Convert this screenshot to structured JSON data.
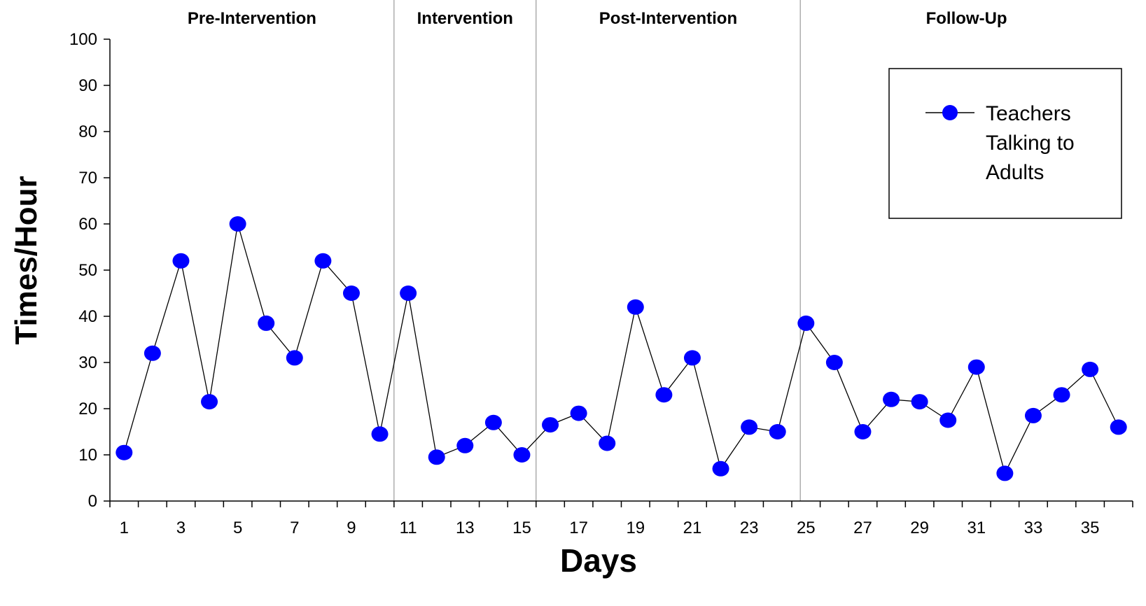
{
  "chart_data": {
    "type": "line",
    "xlabel": "Days",
    "ylabel": "Times/Hour",
    "xlim": [
      0.5,
      36.5
    ],
    "ylim": [
      0,
      100
    ],
    "y_ticks": [
      0,
      10,
      20,
      30,
      40,
      50,
      60,
      70,
      80,
      90,
      100
    ],
    "x_tick_labels": [
      1,
      3,
      5,
      7,
      9,
      11,
      13,
      15,
      17,
      19,
      21,
      23,
      25,
      27,
      29,
      31,
      33,
      35
    ],
    "grid": false,
    "legend_position": "top-right",
    "phases": [
      {
        "label": "Pre-Intervention",
        "start": 0.5,
        "end": 10.5
      },
      {
        "label": "Intervention",
        "start": 10.5,
        "end": 15.5
      },
      {
        "label": "Post-Intervention",
        "start": 15.5,
        "end": 24.8
      },
      {
        "label": "Follow-Up",
        "start": 24.8,
        "end": 36.5
      }
    ],
    "series": [
      {
        "name": "Teachers Talking to Adults",
        "name_lines": [
          "Teachers",
          "Talking to",
          "Adults"
        ],
        "color": "#0000ff",
        "line_color": "#000000",
        "x": [
          1,
          2,
          3,
          4,
          5,
          6,
          7,
          8,
          9,
          10,
          11,
          12,
          13,
          14,
          15,
          16,
          17,
          18,
          19,
          20,
          21,
          22,
          23,
          24,
          25,
          26,
          27,
          28,
          29,
          30,
          31,
          32,
          33,
          34,
          35,
          36
        ],
        "values": [
          10.5,
          32,
          52,
          21.5,
          60,
          38.5,
          31,
          52,
          45,
          14.5,
          45,
          9.5,
          12,
          17,
          10,
          16.5,
          19,
          12.5,
          42,
          23,
          31,
          7,
          16,
          15,
          38.5,
          30,
          15,
          22,
          21.5,
          17.5,
          29,
          6,
          18.5,
          23,
          28.5,
          16
        ]
      }
    ]
  }
}
